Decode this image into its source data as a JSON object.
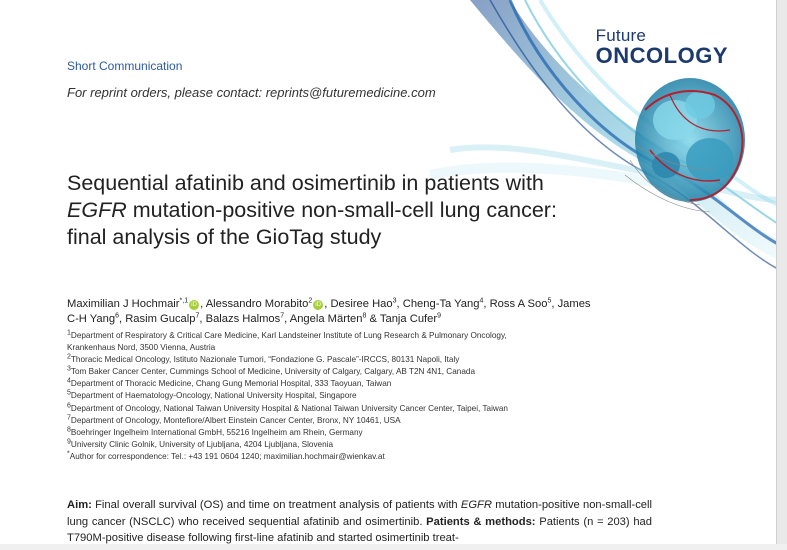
{
  "journal": {
    "brand_top": "Future",
    "brand_bottom": "ONCOLOGY"
  },
  "article_type": "Short Communication",
  "reprint_notice": "For reprint orders, please contact: reprints@futuremedicine.com",
  "title": {
    "part1": "Sequential afatinib and osimertinib in patients with ",
    "italic": "EGFR",
    "part2": " mutation-positive non-small-cell lung cancer: final analysis of the GioTag study"
  },
  "authors": [
    {
      "name": "Maximilian J Hochmair",
      "aff": "*,1",
      "orcid": true
    },
    {
      "name": "Alessandro Morabito",
      "aff": "2",
      "orcid": true
    },
    {
      "name": "Desiree Hao",
      "aff": "3",
      "orcid": false
    },
    {
      "name": "Cheng-Ta Yang",
      "aff": "4",
      "orcid": false
    },
    {
      "name": "Ross A Soo",
      "aff": "5",
      "orcid": false
    },
    {
      "name": "James C-H Yang",
      "aff": "6",
      "orcid": false
    },
    {
      "name": "Rasim Gucalp",
      "aff": "7",
      "orcid": false
    },
    {
      "name": "Balazs Halmos",
      "aff": "7",
      "orcid": false
    },
    {
      "name": "Angela Märten",
      "aff": "8",
      "orcid": false
    },
    {
      "name": "Tanja Cufer",
      "aff": "9",
      "orcid": false
    }
  ],
  "orcid_label": "iD",
  "affiliations": [
    {
      "num": "1",
      "text": "Department of Respiratory & Critical Care Medicine, Karl Landsteiner Institute of Lung Research & Pulmonary Oncology,"
    },
    {
      "num": "",
      "text": "Krankenhaus Nord, 3500 Vienna, Austria"
    },
    {
      "num": "2",
      "text": "Thoracic Medical Oncology, Istituto Nazionale Tumori, “Fondazione G. Pascale”-IRCCS, 80131 Napoli, Italy"
    },
    {
      "num": "3",
      "text": "Tom Baker Cancer Center, Cummings School of Medicine, University of Calgary, Calgary, AB T2N 4N1, Canada"
    },
    {
      "num": "4",
      "text": "Department of Thoracic Medicine, Chang Gung Memorial Hospital, 333 Taoyuan, Taiwan"
    },
    {
      "num": "5",
      "text": "Department of Haematology-Oncology, National University Hospital, Singapore"
    },
    {
      "num": "6",
      "text": "Department of Oncology, National Taiwan University Hospital & National Taiwan University Cancer Center, Taipei, Taiwan"
    },
    {
      "num": "7",
      "text": "Department of Oncology, Montefiore/Albert Einstein Cancer Center, Bronx, NY 10461, USA"
    },
    {
      "num": "8",
      "text": "Boehringer Ingelheim International GmbH, 55216 Ingelheim am Rhein, Germany"
    },
    {
      "num": "9",
      "text": "University Clinic Golnik, University of Ljubljana, 4204 Ljubljana, Slovenia"
    },
    {
      "num": "*",
      "text": "Author for correspondence: Tel.: +43 191 0604 1240; maximilian.hochmair@wienkav.at"
    }
  ],
  "abstract": {
    "aim_label": "Aim:",
    "aim_text_1": " Final overall survival (OS) and time on treatment analysis of patients with ",
    "aim_italic": "EGFR",
    "aim_text_2": " mutation-positive non-small-cell lung cancer (NSCLC) who received sequential afatinib and osimertinib. ",
    "methods_label": "Patients & methods:",
    "methods_text": " Patients (n = 203) had T790M-positive disease following first-line afatinib and started osimertinib treat-"
  },
  "colors": {
    "brand_blue": "#1d3a6e",
    "link_blue": "#2c5aa0",
    "orcid_green": "#a6ce39",
    "art_teal": "#3fa9c9",
    "art_red": "#b5202e"
  }
}
